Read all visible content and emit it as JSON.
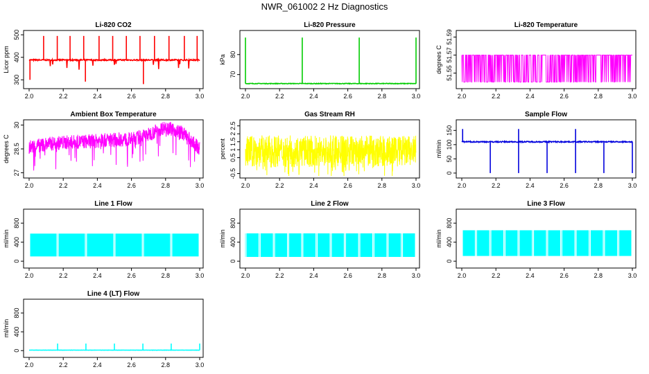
{
  "page_title": "NWR_061002  2 Hz Diagnostics",
  "chart_data": [
    {
      "type": "line",
      "title": "Li-820 CO2",
      "ylabel": "Licor ppm",
      "color": "#ff0000",
      "xlim": [
        2.0,
        3.0
      ],
      "ylim": [
        270,
        510
      ],
      "yticks": [
        300,
        400,
        500
      ],
      "xticks": [
        "2.0",
        "2.2",
        "2.4",
        "2.6",
        "2.8",
        "3.0"
      ],
      "gen": {
        "kind": "baseline",
        "base": 388,
        "noise": 3,
        "dips": 12,
        "dip_to": 345,
        "spikes": [
          2.085,
          2.165,
          2.24,
          2.32,
          2.41,
          2.49,
          2.57,
          2.65,
          2.735,
          2.82,
          2.91,
          2.985
        ],
        "spike_to": 495,
        "extra_low": [
          [
            2.005,
            300
          ],
          [
            2.33,
            292
          ],
          [
            2.67,
            281
          ]
        ]
      }
    },
    {
      "type": "line",
      "title": "Li-820 Pressure",
      "ylabel": "kPa",
      "color": "#00cc00",
      "xlim": [
        2.0,
        3.0
      ],
      "ylim": [
        64,
        91
      ],
      "yticks": [
        70,
        80
      ],
      "xticks": [
        "2.0",
        "2.2",
        "2.4",
        "2.6",
        "2.8",
        "3.0"
      ],
      "gen": {
        "kind": "baseline",
        "base": 65.5,
        "noise": 0.15,
        "dips": 0,
        "dip_to": 65,
        "spikes": [
          2.0,
          2.333,
          2.667,
          3.0
        ],
        "spike_to": 88.5,
        "extra_low": []
      }
    },
    {
      "type": "line",
      "title": "Li-820 Temperature",
      "ylabel": "degrees C",
      "color": "#ff00ff",
      "xlim": [
        2.0,
        3.0
      ],
      "ylim": [
        51.535,
        51.595
      ],
      "yticks": [
        51.55,
        51.57,
        51.59
      ],
      "xticks": [
        "2.0",
        "2.2",
        "2.4",
        "2.6",
        "2.8",
        "3.0"
      ],
      "gen": {
        "kind": "steps",
        "levels": [
          51.54,
          51.57
        ],
        "hi": 51.59,
        "hi_range": [
          2.68,
          2.78
        ]
      }
    },
    {
      "type": "line",
      "title": "Ambient Box Temperature",
      "ylabel": "degrees C",
      "color": "#ff00ff",
      "xlim": [
        2.0,
        3.0
      ],
      "ylim": [
        26.8,
        30.2
      ],
      "yticks": [
        27.0,
        28.5,
        30.0
      ],
      "xticks": [
        "2.0",
        "2.2",
        "2.4",
        "2.6",
        "2.8",
        "3.0"
      ],
      "gen": {
        "kind": "band",
        "trend": [
          [
            2.0,
            28.6
          ],
          [
            2.1,
            28.8
          ],
          [
            2.2,
            28.9
          ],
          [
            2.4,
            29.0
          ],
          [
            2.5,
            29.1
          ],
          [
            2.6,
            29.1
          ],
          [
            2.7,
            29.4
          ],
          [
            2.8,
            29.9
          ],
          [
            2.9,
            29.5
          ],
          [
            3.0,
            28.5
          ]
        ],
        "amp": 0.45,
        "down": 1.3
      }
    },
    {
      "type": "line",
      "title": "Gas Stream RH",
      "ylabel": "percent",
      "color": "#ffff00",
      "xlim": [
        2.0,
        3.0
      ],
      "ylim": [
        -0.65,
        2.75
      ],
      "yticks": [
        -0.5,
        0.5,
        1.0,
        1.5,
        2.0,
        2.5
      ],
      "xticks": [
        "2.0",
        "2.2",
        "2.4",
        "2.6",
        "2.8",
        "3.0"
      ],
      "gen": {
        "kind": "band",
        "trend": [
          [
            2.0,
            0.9
          ],
          [
            3.0,
            0.9
          ]
        ],
        "amp": 1.0,
        "down": 0.6
      }
    },
    {
      "type": "line",
      "title": "Sample Flow",
      "ylabel": "ml/min",
      "color": "#0000dd",
      "xlim": [
        2.0,
        3.0
      ],
      "ylim": [
        -10,
        180
      ],
      "yticks": [
        0,
        50,
        100,
        150
      ],
      "xticks": [
        "2.0",
        "2.2",
        "2.4",
        "2.6",
        "2.8",
        "3.0"
      ],
      "gen": {
        "kind": "baseline",
        "base": 110,
        "noise": 2,
        "dips": 0,
        "dip_to": 100,
        "spikes": [
          2.005,
          2.333,
          2.667
        ],
        "spike_to": 155,
        "extra_low": [
          [
            2.167,
            0
          ],
          [
            2.333,
            0
          ],
          [
            2.5,
            0
          ],
          [
            2.667,
            0
          ],
          [
            2.833,
            0
          ],
          [
            3.0,
            0
          ]
        ]
      }
    },
    {
      "type": "line",
      "title": "Line 1 Flow",
      "ylabel": "ml/min",
      "color": "#00ffff",
      "xlim": [
        2.0,
        3.0
      ],
      "ylim": [
        -100,
        1050
      ],
      "yticks": [
        0,
        400,
        800
      ],
      "xticks": [
        "2.0",
        "2.2",
        "2.4",
        "2.6",
        "2.8",
        "3.0"
      ],
      "gen": {
        "kind": "block",
        "lo": 100,
        "hi": 580,
        "gaps": [
          2.167,
          2.333,
          2.5,
          2.667,
          2.833
        ]
      }
    },
    {
      "type": "line",
      "title": "Line 2 Flow",
      "ylabel": "ml/min",
      "color": "#00ffff",
      "xlim": [
        2.0,
        3.0
      ],
      "ylim": [
        -100,
        1050
      ],
      "yticks": [
        0,
        400,
        800
      ],
      "xticks": [
        "2.0",
        "2.2",
        "2.4",
        "2.6",
        "2.8",
        "3.0"
      ],
      "gen": {
        "kind": "block",
        "lo": 90,
        "hi": 585,
        "gaps": [
          2.0,
          2.083,
          2.167,
          2.25,
          2.333,
          2.417,
          2.5,
          2.583,
          2.667,
          2.75,
          2.833,
          2.917
        ]
      }
    },
    {
      "type": "line",
      "title": "Line 3 Flow",
      "ylabel": "ml/min",
      "color": "#00ffff",
      "xlim": [
        2.0,
        3.0
      ],
      "ylim": [
        -100,
        1050
      ],
      "yticks": [
        0,
        400,
        800
      ],
      "xticks": [
        "2.0",
        "2.2",
        "2.4",
        "2.6",
        "2.8",
        "3.0"
      ],
      "gen": {
        "kind": "block",
        "lo": 110,
        "hi": 650,
        "gaps": [
          2.083,
          2.167,
          2.25,
          2.333,
          2.417,
          2.5,
          2.583,
          2.667,
          2.75,
          2.833,
          2.917
        ]
      }
    },
    {
      "type": "line",
      "title": "Line 4 (LT) Flow",
      "ylabel": "ml/min",
      "color": "#00ffff",
      "xlim": [
        2.0,
        3.0
      ],
      "ylim": [
        -100,
        1050
      ],
      "yticks": [
        0,
        400,
        800
      ],
      "xticks": [
        "2.0",
        "2.2",
        "2.4",
        "2.6",
        "2.8",
        "3.0"
      ],
      "gen": {
        "kind": "baseline",
        "base": 10,
        "noise": 2,
        "dips": 0,
        "dip_to": 0,
        "spikes": [
          2.167,
          2.333,
          2.5,
          2.667,
          2.833,
          3.0
        ],
        "spike_to": 150,
        "extra_low": []
      }
    }
  ]
}
